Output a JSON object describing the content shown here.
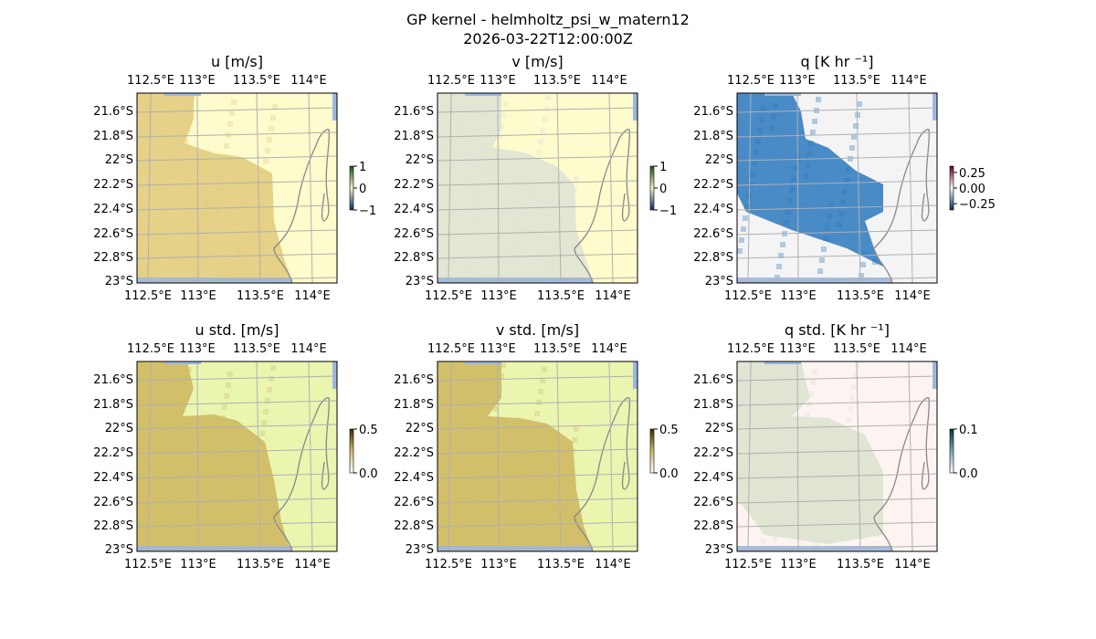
{
  "chart_data": {
    "type": "heatmap",
    "title": "GP kernel - helmholtz_psi_w_matern12",
    "subtitle": "2026-03-22T12:00:00Z",
    "x_ticks_top": [
      "112.5°E",
      "113°E",
      "113.5°E",
      "114°E"
    ],
    "x_ticks_bottom": [
      "112.5°E",
      "113°E",
      "113.5°E",
      "114°E"
    ],
    "y_ticks": [
      "21.6°S",
      "21.8°S",
      "22°S",
      "22.2°S",
      "22.4°S",
      "22.6°S",
      "22.8°S",
      "23°S"
    ],
    "grid": true,
    "panels": [
      {
        "title": "u [m/s]",
        "colorbar_ticks": [
          "1",
          "0",
          "−1"
        ],
        "colorbar_range": [
          -1,
          1
        ],
        "colormap": "blue-white-yellow-green",
        "background": "#fefbcc",
        "field": "#e2cc80",
        "field_opacity": 0.9
      },
      {
        "title": "v [m/s]",
        "colorbar_ticks": [
          "1",
          "0",
          "−1"
        ],
        "colorbar_range": [
          -1,
          1
        ],
        "colormap": "blue-white-yellow-green",
        "background": "#fefbcc",
        "field": "#dfe3d4",
        "field_opacity": 0.9
      },
      {
        "title": "q [K hr ⁻¹]",
        "colorbar_ticks": [
          "0.25",
          "0.00",
          "−0.25"
        ],
        "colorbar_range": [
          -0.35,
          0.35
        ],
        "colormap": "RdBu_r",
        "background": "#f4f4f4",
        "field": "#2a78bd",
        "field_opacity": 0.85
      },
      {
        "title": "u std. [m/s]",
        "colorbar_ticks": [
          "0.5",
          "0.0"
        ],
        "colorbar_range": [
          0,
          0.5
        ],
        "colormap": "yellow-green",
        "background": "#eaf5b0",
        "field": "#d2bf6a",
        "field_opacity": 1
      },
      {
        "title": "v std. [m/s]",
        "colorbar_ticks": [
          "0.5",
          "0.0"
        ],
        "colorbar_range": [
          0,
          0.5
        ],
        "colormap": "yellow-green",
        "background": "#eaf5b0",
        "field": "#d2bf6a",
        "field_opacity": 1
      },
      {
        "title": "q std. [K hr ⁻¹]",
        "colorbar_ticks": [
          "0.1",
          "0.0"
        ],
        "colorbar_range": [
          0,
          0.1
        ],
        "colormap": "pink-green",
        "background": "#fdf4f2",
        "field": "#dde3d0",
        "field_opacity": 0.9
      }
    ]
  },
  "colors": {
    "land": "#9db8df",
    "coast": "#888888",
    "grid": "#b0b0b0"
  }
}
